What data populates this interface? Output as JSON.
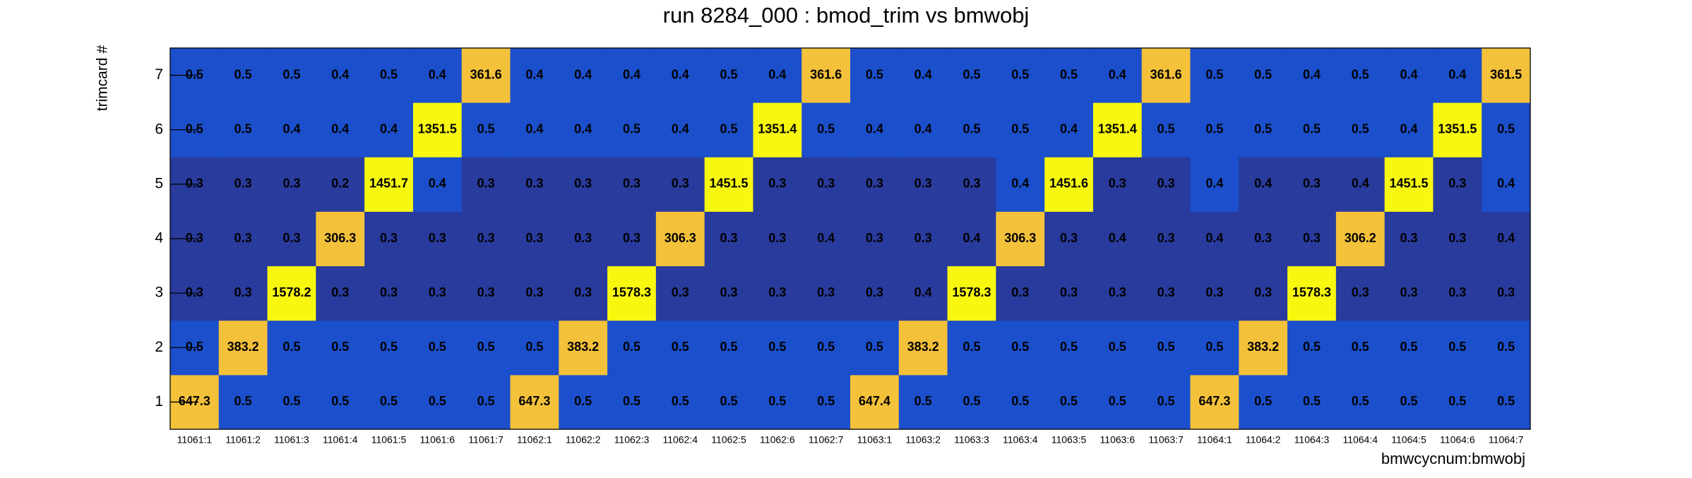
{
  "chart_data": {
    "type": "heatmap",
    "title": "run 8284_000 : bmod_trim vs bmwobj",
    "x_label": "bmwcycnum:bmwobj",
    "y_label": "trimcard #",
    "categories": [
      "11061:1",
      "11061:2",
      "11061:3",
      "11061:4",
      "11061:5",
      "11061:6",
      "11061:7",
      "11062:1",
      "11062:2",
      "11062:3",
      "11062:4",
      "11062:5",
      "11062:6",
      "11062:7",
      "11063:1",
      "11063:2",
      "11063:3",
      "11063:4",
      "11063:5",
      "11063:6",
      "11063:7",
      "11064:1",
      "11064:2",
      "11064:3",
      "11064:4",
      "11064:5",
      "11064:6",
      "11064:7"
    ],
    "y_categories": [
      1,
      2,
      3,
      4,
      5,
      6,
      7
    ],
    "values": [
      [
        647.3,
        0.5,
        0.5,
        0.5,
        0.5,
        0.5,
        0.5,
        647.3,
        0.5,
        0.5,
        0.5,
        0.5,
        0.5,
        0.5,
        647.4,
        0.5,
        0.5,
        0.5,
        0.5,
        0.5,
        0.5,
        647.3,
        0.5,
        0.5,
        0.5,
        0.5,
        0.5,
        0.5
      ],
      [
        0.5,
        383.2,
        0.5,
        0.5,
        0.5,
        0.5,
        0.5,
        0.5,
        383.2,
        0.5,
        0.5,
        0.5,
        0.5,
        0.5,
        0.5,
        383.2,
        0.5,
        0.5,
        0.5,
        0.5,
        0.5,
        0.5,
        383.2,
        0.5,
        0.5,
        0.5,
        0.5,
        0.5
      ],
      [
        0.3,
        0.3,
        1578.2,
        0.3,
        0.3,
        0.3,
        0.3,
        0.3,
        0.3,
        1578.3,
        0.3,
        0.3,
        0.3,
        0.3,
        0.3,
        0.4,
        1578.3,
        0.3,
        0.3,
        0.3,
        0.3,
        0.3,
        0.3,
        1578.3,
        0.3,
        0.3,
        0.3,
        0.3
      ],
      [
        0.3,
        0.3,
        0.3,
        306.3,
        0.3,
        0.3,
        0.3,
        0.3,
        0.3,
        0.3,
        306.3,
        0.3,
        0.3,
        0.4,
        0.3,
        0.3,
        0.4,
        306.3,
        0.3,
        0.4,
        0.3,
        0.4,
        0.3,
        0.3,
        306.2,
        0.3,
        0.3,
        0.4
      ],
      [
        0.3,
        0.3,
        0.3,
        0.2,
        1451.7,
        0.4,
        0.3,
        0.3,
        0.3,
        0.3,
        0.3,
        1451.5,
        0.3,
        0.3,
        0.3,
        0.3,
        0.3,
        0.4,
        1451.6,
        0.3,
        0.3,
        0.4,
        0.4,
        0.3,
        0.4,
        1451.5,
        0.3,
        0.4
      ],
      [
        0.5,
        0.5,
        0.4,
        0.4,
        0.4,
        1351.5,
        0.5,
        0.4,
        0.4,
        0.5,
        0.4,
        0.5,
        1351.4,
        0.5,
        0.4,
        0.4,
        0.5,
        0.5,
        0.4,
        1351.4,
        0.5,
        0.5,
        0.5,
        0.5,
        0.5,
        0.4,
        1351.5,
        0.5
      ],
      [
        0.5,
        0.5,
        0.5,
        0.4,
        0.5,
        0.4,
        361.6,
        0.4,
        0.4,
        0.4,
        0.4,
        0.5,
        0.4,
        361.6,
        0.5,
        0.4,
        0.5,
        0.5,
        0.5,
        0.4,
        361.6,
        0.5,
        0.5,
        0.4,
        0.5,
        0.4,
        0.4,
        361.5
      ]
    ],
    "colors": [
      [
        "#f4c13b",
        "#1b4fcb",
        "#1b4fcb",
        "#1b4fcb",
        "#1b4fcb",
        "#1b4fcb",
        "#1b4fcb",
        "#f4c13b",
        "#1b4fcb",
        "#1b4fcb",
        "#1b4fcb",
        "#1b4fcb",
        "#1b4fcb",
        "#1b4fcb",
        "#f4c13b",
        "#1b4fcb",
        "#1b4fcb",
        "#1b4fcb",
        "#1b4fcb",
        "#1b4fcb",
        "#1b4fcb",
        "#f4c13b",
        "#1b4fcb",
        "#1b4fcb",
        "#1b4fcb",
        "#1b4fcb",
        "#1b4fcb",
        "#1b4fcb"
      ],
      [
        "#1b4fcb",
        "#f4c13b",
        "#1b4fcb",
        "#1b4fcb",
        "#1b4fcb",
        "#1b4fcb",
        "#1b4fcb",
        "#1b4fcb",
        "#f4c13b",
        "#1b4fcb",
        "#1b4fcb",
        "#1b4fcb",
        "#1b4fcb",
        "#1b4fcb",
        "#1b4fcb",
        "#f4c13b",
        "#1b4fcb",
        "#1b4fcb",
        "#1b4fcb",
        "#1b4fcb",
        "#1b4fcb",
        "#1b4fcb",
        "#f4c13b",
        "#1b4fcb",
        "#1b4fcb",
        "#1b4fcb",
        "#1b4fcb",
        "#1b4fcb"
      ],
      [
        "#293b9d",
        "#293b9d",
        "#f7f70f",
        "#293b9d",
        "#293b9d",
        "#293b9d",
        "#293b9d",
        "#293b9d",
        "#293b9d",
        "#f7f70f",
        "#293b9d",
        "#293b9d",
        "#293b9d",
        "#293b9d",
        "#293b9d",
        "#293b9d",
        "#f7f70f",
        "#293b9d",
        "#293b9d",
        "#293b9d",
        "#293b9d",
        "#293b9d",
        "#293b9d",
        "#f7f70f",
        "#293b9d",
        "#293b9d",
        "#293b9d",
        "#293b9d"
      ],
      [
        "#293b9d",
        "#293b9d",
        "#293b9d",
        "#f4c13b",
        "#293b9d",
        "#293b9d",
        "#293b9d",
        "#293b9d",
        "#293b9d",
        "#293b9d",
        "#f4c13b",
        "#293b9d",
        "#293b9d",
        "#293b9d",
        "#293b9d",
        "#293b9d",
        "#293b9d",
        "#f4c13b",
        "#293b9d",
        "#293b9d",
        "#293b9d",
        "#293b9d",
        "#293b9d",
        "#293b9d",
        "#f4c13b",
        "#293b9d",
        "#293b9d",
        "#293b9d"
      ],
      [
        "#293b9d",
        "#293b9d",
        "#293b9d",
        "#293b9d",
        "#f7f70f",
        "#1b4fcb",
        "#293b9d",
        "#293b9d",
        "#293b9d",
        "#293b9d",
        "#293b9d",
        "#f7f70f",
        "#293b9d",
        "#293b9d",
        "#293b9d",
        "#293b9d",
        "#293b9d",
        "#1b4fcb",
        "#f7f70f",
        "#293b9d",
        "#293b9d",
        "#1b4fcb",
        "#293b9d",
        "#293b9d",
        "#293b9d",
        "#f7f70f",
        "#293b9d",
        "#1b4fcb"
      ],
      [
        "#1b4fcb",
        "#1b4fcb",
        "#1b4fcb",
        "#1b4fcb",
        "#1b4fcb",
        "#f7f70f",
        "#1b4fcb",
        "#1b4fcb",
        "#1b4fcb",
        "#1b4fcb",
        "#1b4fcb",
        "#1b4fcb",
        "#f7f70f",
        "#1b4fcb",
        "#1b4fcb",
        "#1b4fcb",
        "#1b4fcb",
        "#1b4fcb",
        "#1b4fcb",
        "#f7f70f",
        "#1b4fcb",
        "#1b4fcb",
        "#1b4fcb",
        "#1b4fcb",
        "#1b4fcb",
        "#1b4fcb",
        "#f7f70f",
        "#1b4fcb"
      ],
      [
        "#1b4fcb",
        "#1b4fcb",
        "#1b4fcb",
        "#1b4fcb",
        "#1b4fcb",
        "#1b4fcb",
        "#f4c13b",
        "#1b4fcb",
        "#1b4fcb",
        "#1b4fcb",
        "#1b4fcb",
        "#1b4fcb",
        "#1b4fcb",
        "#f4c13b",
        "#1b4fcb",
        "#1b4fcb",
        "#1b4fcb",
        "#1b4fcb",
        "#1b4fcb",
        "#1b4fcb",
        "#f4c13b",
        "#1b4fcb",
        "#1b4fcb",
        "#1b4fcb",
        "#1b4fcb",
        "#1b4fcb",
        "#1b4fcb",
        "#f4c13b"
      ]
    ]
  }
}
